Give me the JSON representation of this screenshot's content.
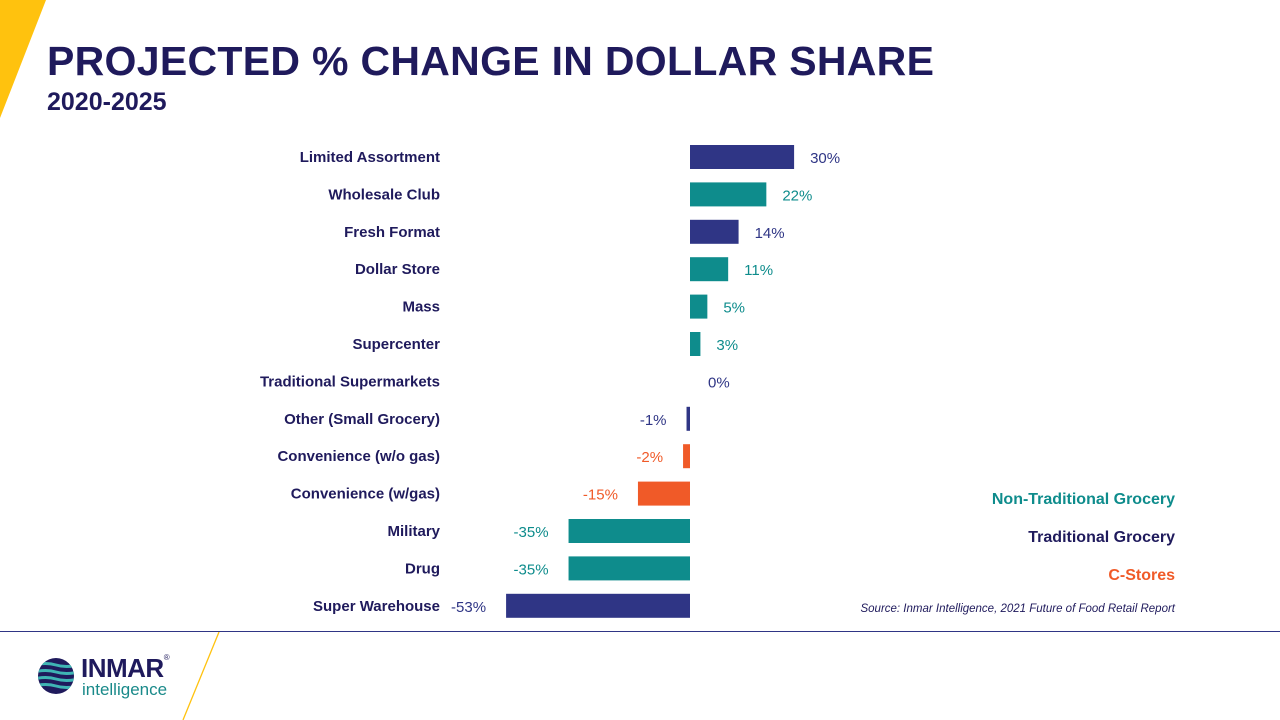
{
  "header": {
    "title": "PROJECTED % CHANGE IN DOLLAR SHARE",
    "subtitle": "2020-2025"
  },
  "colors": {
    "traditional": "#2f3585",
    "non_traditional": "#0e8c8c",
    "c_stores": "#f05a28",
    "accent_yellow": "#ffc20e",
    "navy_text": "#1f1a5c"
  },
  "chart_data": {
    "type": "bar",
    "orientation": "horizontal",
    "categories": [
      "Limited Assortment",
      "Wholesale Club",
      "Fresh Format",
      "Dollar Store",
      "Mass",
      "Supercenter",
      "Traditional Supermarkets",
      "Other (Small Grocery)",
      "Convenience (w/o gas)",
      "Convenience (w/gas)",
      "Military",
      "Drug",
      "Super Warehouse"
    ],
    "values": [
      30,
      22,
      14,
      11,
      5,
      3,
      0,
      -1,
      -2,
      -15,
      -35,
      -35,
      -53
    ],
    "value_labels": [
      "30%",
      "22%",
      "14%",
      "11%",
      "5%",
      "3%",
      "0%",
      "-1%",
      "-2%",
      "-15%",
      "-35%",
      "-35%",
      "-53%"
    ],
    "groups": [
      "Traditional Grocery",
      "Non-Traditional Grocery",
      "Traditional Grocery",
      "Non-Traditional Grocery",
      "Non-Traditional Grocery",
      "Non-Traditional Grocery",
      "Traditional Grocery",
      "Traditional Grocery",
      "C-Stores",
      "C-Stores",
      "Non-Traditional Grocery",
      "Non-Traditional Grocery",
      "Traditional Grocery"
    ],
    "legend": [
      "Non-Traditional Grocery",
      "Traditional Grocery",
      "C-Stores"
    ],
    "legend_placement": "bottom-right",
    "xlim": [
      -53,
      30
    ],
    "grid": false
  },
  "source": "Source: Inmar Intelligence, 2021 Future of Food Retail Report",
  "logo": {
    "wordmark": "INMAR",
    "registered": "®",
    "tagline": "intelligence"
  }
}
